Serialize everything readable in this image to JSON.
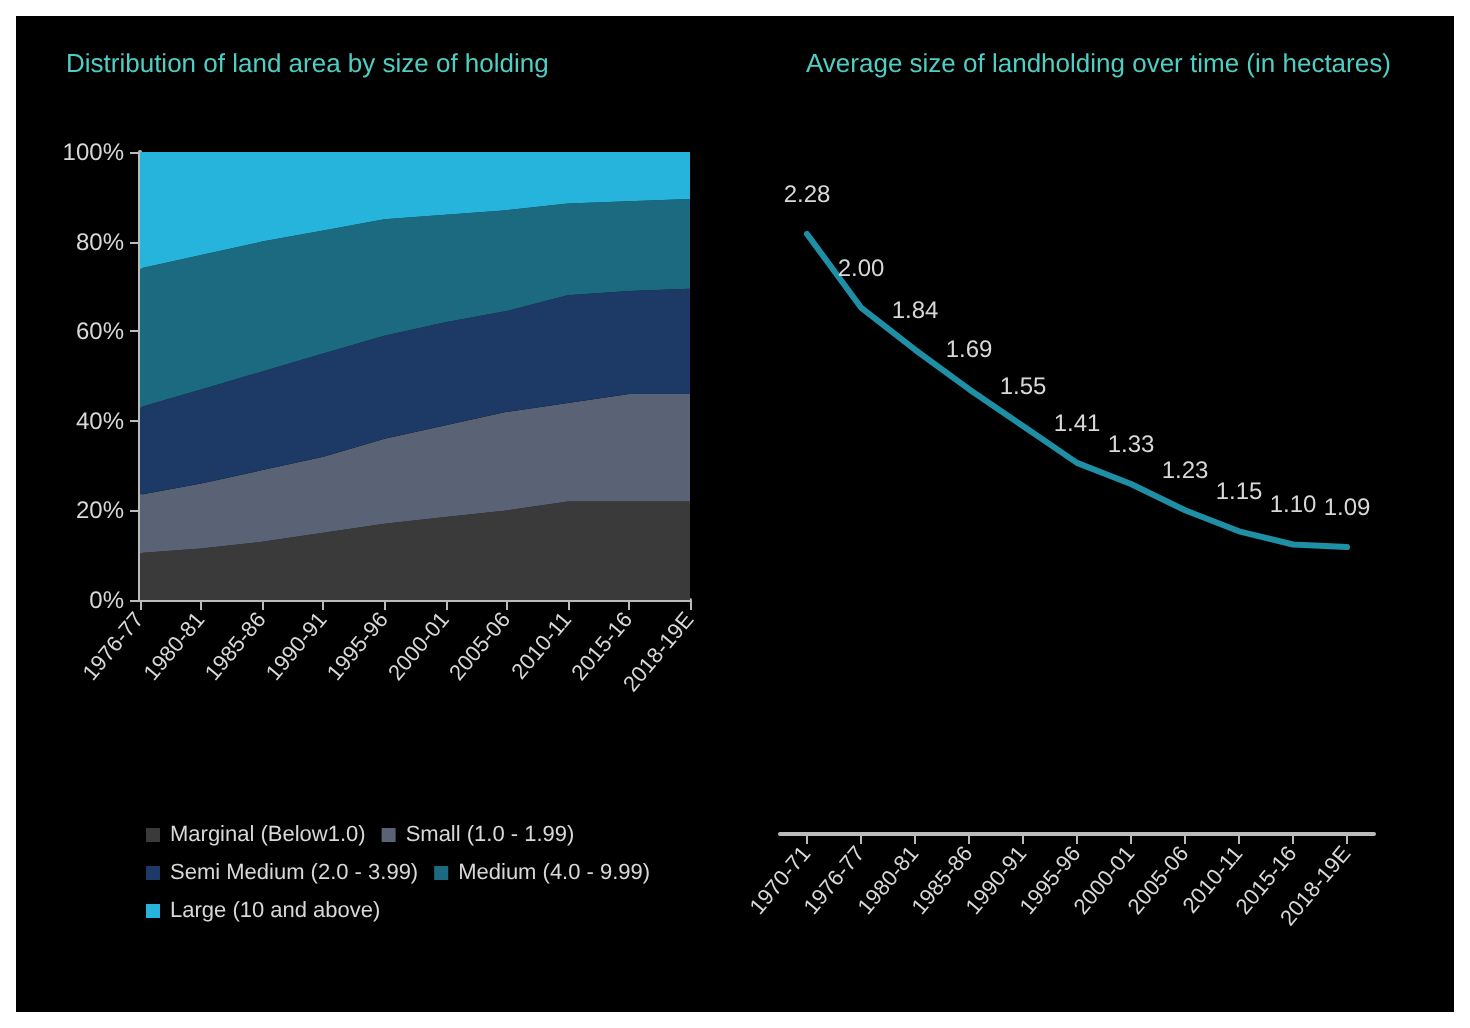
{
  "chart_data": [
    {
      "type": "area",
      "title": "Distribution of land area by size of holding",
      "categories": [
        "1976-77",
        "1980-81",
        "1985-86",
        "1990-91",
        "1995-96",
        "2000-01",
        "2005-06",
        "2010-11",
        "2015-16",
        "2018-19E"
      ],
      "stacked": true,
      "ylim": [
        0,
        100
      ],
      "yticks": [
        {
          "value": 0,
          "label": "0%"
        },
        {
          "value": 20,
          "label": "20%"
        },
        {
          "value": 40,
          "label": "40%"
        },
        {
          "value": 60,
          "label": "60%"
        },
        {
          "value": 80,
          "label": "80%"
        },
        {
          "value": 100,
          "label": "100%"
        }
      ],
      "grid": false,
      "legend": "bottom",
      "series": [
        {
          "name": "Marginal (Below1.0)",
          "color": "#3a3a3a",
          "values": [
            10.5,
            11.5,
            13,
            15,
            17,
            18.5,
            20,
            22,
            22,
            22
          ]
        },
        {
          "name": "Small (1.0 - 1.99)",
          "color": "#5a6275",
          "values": [
            13,
            14.5,
            16,
            17,
            19,
            20.5,
            22,
            22,
            24,
            24
          ]
        },
        {
          "name": "Semi Medium (2.0 - 3.99)",
          "color": "#1d3a66",
          "values": [
            19.5,
            21,
            22,
            23,
            23,
            23,
            22.5,
            24,
            23,
            23.5
          ]
        },
        {
          "name": "Medium (4.0 - 9.99)",
          "color": "#1c6a80",
          "values": [
            31,
            30,
            29,
            27.5,
            26,
            24,
            22.5,
            20.5,
            20,
            20
          ]
        },
        {
          "name": "Large (10 and above)",
          "color": "#27b4dc",
          "values": [
            26,
            23,
            20,
            17.5,
            15,
            14,
            13,
            11.5,
            11,
            10.5
          ]
        }
      ]
    },
    {
      "type": "line",
      "title": "Average size of landholding over time (in hectares)",
      "categories": [
        "1970-71",
        "1976-77",
        "1980-81",
        "1985-86",
        "1990-91",
        "1995-96",
        "2000-01",
        "2005-06",
        "2010-11",
        "2015-16",
        "2018-19E"
      ],
      "tick_labels": "x",
      "grid": false,
      "legend": false,
      "marker": "none",
      "series": [
        {
          "color": "#1f8fa5",
          "values": [
            2.28,
            2.0,
            1.84,
            1.69,
            1.55,
            1.41,
            1.33,
            1.23,
            1.15,
            1.1,
            1.09
          ],
          "value_labels": [
            "2.28",
            "2.00",
            "1.84",
            "1.69",
            "1.55",
            "1.41",
            "1.33",
            "1.23",
            "1.15",
            "1.10",
            "1.09"
          ]
        }
      ]
    }
  ]
}
